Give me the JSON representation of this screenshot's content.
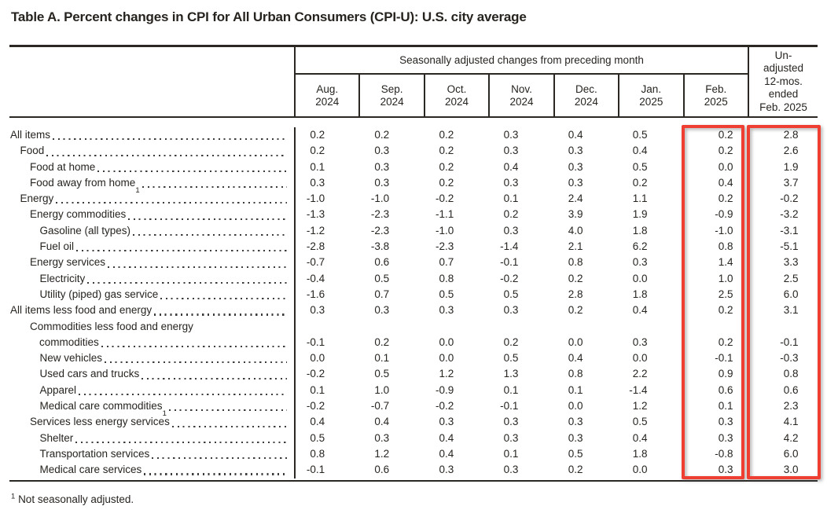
{
  "title": "Table A. Percent changes in CPI for All Urban Consumers (CPI-U): U.S. city average",
  "table": {
    "banner": "Seasonally adjusted changes from preceding month",
    "month_columns": [
      [
        "Aug.",
        "2024"
      ],
      [
        "Sep.",
        "2024"
      ],
      [
        "Oct.",
        "2024"
      ],
      [
        "Nov.",
        "2024"
      ],
      [
        "Dec.",
        "2024"
      ],
      [
        "Jan.",
        "2025"
      ],
      [
        "Feb.",
        "2025"
      ]
    ],
    "last_column_lines": [
      "Un-",
      "adjusted",
      "12-mos.",
      "ended",
      "Feb. 2025"
    ],
    "column_keys": [
      "aug-2024",
      "sep-2024",
      "oct-2024",
      "nov-2024",
      "dec-2024",
      "jan-2025",
      "feb-2025",
      "12-mos-unadjusted"
    ],
    "rows": [
      {
        "label": "All items",
        "indent": 0,
        "values": [
          "0.2",
          "0.2",
          "0.2",
          "0.3",
          "0.4",
          "0.5",
          "0.2",
          "2.8"
        ]
      },
      {
        "label": "Food",
        "indent": 1,
        "values": [
          "0.2",
          "0.3",
          "0.2",
          "0.3",
          "0.3",
          "0.4",
          "0.2",
          "2.6"
        ]
      },
      {
        "label": "Food at home",
        "indent": 2,
        "values": [
          "0.1",
          "0.3",
          "0.2",
          "0.4",
          "0.3",
          "0.5",
          "0.0",
          "1.9"
        ]
      },
      {
        "label": "Food away from home",
        "sup": "1",
        "indent": 2,
        "values": [
          "0.3",
          "0.3",
          "0.2",
          "0.3",
          "0.3",
          "0.2",
          "0.4",
          "3.7"
        ]
      },
      {
        "label": "Energy",
        "indent": 1,
        "values": [
          "-1.0",
          "-1.0",
          "-0.2",
          "0.1",
          "2.4",
          "1.1",
          "0.2",
          "-0.2"
        ]
      },
      {
        "label": "Energy commodities",
        "indent": 2,
        "values": [
          "-1.3",
          "-2.3",
          "-1.1",
          "0.2",
          "3.9",
          "1.9",
          "-0.9",
          "-3.2"
        ]
      },
      {
        "label": "Gasoline (all types)",
        "indent": 3,
        "values": [
          "-1.2",
          "-2.3",
          "-1.0",
          "0.3",
          "4.0",
          "1.8",
          "-1.0",
          "-3.1"
        ]
      },
      {
        "label": "Fuel oil",
        "indent": 3,
        "values": [
          "-2.8",
          "-3.8",
          "-2.3",
          "-1.4",
          "2.1",
          "6.2",
          "0.8",
          "-5.1"
        ]
      },
      {
        "label": "Energy services",
        "indent": 2,
        "values": [
          "-0.7",
          "0.6",
          "0.7",
          "-0.1",
          "0.8",
          "0.3",
          "1.4",
          "3.3"
        ]
      },
      {
        "label": "Electricity",
        "indent": 3,
        "values": [
          "-0.4",
          "0.5",
          "0.8",
          "-0.2",
          "0.2",
          "0.0",
          "1.0",
          "2.5"
        ]
      },
      {
        "label": "Utility (piped) gas service",
        "indent": 3,
        "values": [
          "-1.6",
          "0.7",
          "0.5",
          "0.5",
          "2.8",
          "1.8",
          "2.5",
          "6.0"
        ]
      },
      {
        "label": "All items less food and energy",
        "indent": 0,
        "values": [
          "0.3",
          "0.3",
          "0.3",
          "0.3",
          "0.2",
          "0.4",
          "0.2",
          "3.1"
        ]
      },
      {
        "label": "Commodities less food and energy",
        "label2": "commodities",
        "indent": 2,
        "values": [
          "-0.1",
          "0.2",
          "0.0",
          "0.2",
          "0.0",
          "0.3",
          "0.2",
          "-0.1"
        ]
      },
      {
        "label": "New vehicles",
        "indent": 3,
        "values": [
          "0.0",
          "0.1",
          "0.0",
          "0.5",
          "0.4",
          "0.0",
          "-0.1",
          "-0.3"
        ]
      },
      {
        "label": "Used cars and trucks",
        "indent": 3,
        "values": [
          "-0.2",
          "0.5",
          "1.2",
          "1.3",
          "0.8",
          "2.2",
          "0.9",
          "0.8"
        ]
      },
      {
        "label": "Apparel",
        "indent": 3,
        "values": [
          "0.1",
          "1.0",
          "-0.9",
          "0.1",
          "0.1",
          "-1.4",
          "0.6",
          "0.6"
        ]
      },
      {
        "label": "Medical care commodities",
        "sup": "1",
        "indent": 3,
        "values": [
          "-0.2",
          "-0.7",
          "-0.2",
          "-0.1",
          "0.0",
          "1.2",
          "0.1",
          "2.3"
        ]
      },
      {
        "label": "Services less energy services",
        "indent": 2,
        "values": [
          "0.4",
          "0.4",
          "0.3",
          "0.3",
          "0.3",
          "0.5",
          "0.3",
          "4.1"
        ]
      },
      {
        "label": "Shelter",
        "indent": 3,
        "values": [
          "0.5",
          "0.3",
          "0.4",
          "0.3",
          "0.3",
          "0.4",
          "0.3",
          "4.2"
        ]
      },
      {
        "label": "Transportation services",
        "indent": 3,
        "values": [
          "0.8",
          "1.2",
          "0.4",
          "0.1",
          "0.5",
          "1.8",
          "-0.8",
          "6.0"
        ]
      },
      {
        "label": "Medical care services",
        "indent": 3,
        "values": [
          "-0.1",
          "0.6",
          "0.3",
          "0.3",
          "0.2",
          "0.0",
          "0.3",
          "3.0"
        ]
      }
    ]
  },
  "highlights": {
    "color": "#ef3f33",
    "boxes": [
      "feb-2025-column",
      "12-month-unadjusted-column"
    ]
  },
  "footnote_marker": "1",
  "footnote": "Not seasonally adjusted."
}
